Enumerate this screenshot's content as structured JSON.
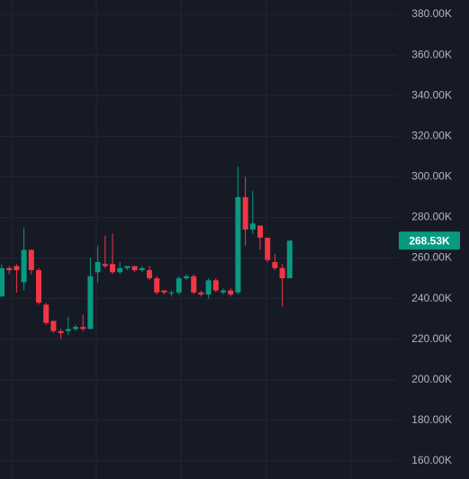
{
  "chart_data": {
    "type": "candlestick",
    "open": [
      241,
      255,
      256,
      248,
      264,
      254,
      237,
      229,
      224,
      224,
      225,
      226,
      225,
      253,
      257,
      257,
      253,
      255,
      256,
      254,
      254,
      250,
      244,
      243,
      243,
      250,
      251,
      243,
      242,
      249,
      243,
      244,
      243,
      290,
      274,
      276,
      270,
      258,
      255,
      250
    ],
    "high": [
      257,
      256,
      257,
      275,
      264,
      255,
      238,
      229,
      225,
      231,
      227,
      232,
      260,
      266,
      271,
      272,
      258,
      256,
      256,
      256,
      256,
      251,
      244,
      244,
      251,
      252,
      252,
      244,
      250,
      250,
      245,
      245,
      305,
      300,
      293,
      276,
      270,
      262,
      257,
      268.53
    ],
    "low": [
      241,
      252,
      243,
      244,
      252,
      237,
      227,
      223,
      220,
      222,
      224,
      224,
      225,
      248,
      255,
      252,
      252,
      254,
      253,
      253,
      249,
      242,
      242,
      241,
      242,
      249,
      242,
      241,
      240,
      243,
      242,
      241,
      242,
      266,
      272,
      264,
      258,
      254,
      236,
      250
    ],
    "close": [
      255,
      254,
      254,
      264,
      254,
      238,
      228,
      224,
      223,
      225,
      226,
      225,
      251,
      258,
      256,
      253,
      255,
      256,
      254,
      255,
      250,
      243,
      243,
      243,
      250,
      251,
      243,
      242,
      249,
      244,
      244,
      242,
      290,
      274,
      277,
      270,
      259,
      255,
      250,
      268.53
    ],
    "up_color": "#089981",
    "down_color": "#f23645",
    "ylim": [
      151.1,
      387.1
    ],
    "yticks": [
      {
        "value": 160,
        "label": "160.00K"
      },
      {
        "value": 180,
        "label": "180.00K"
      },
      {
        "value": 200,
        "label": "200.00K"
      },
      {
        "value": 220,
        "label": "220.00K"
      },
      {
        "value": 240,
        "label": "240.00K"
      },
      {
        "value": 260,
        "label": "260.00K"
      },
      {
        "value": 280,
        "label": "280.00K"
      },
      {
        "value": 300,
        "label": "300.00K"
      },
      {
        "value": 320,
        "label": "320.00K"
      },
      {
        "value": 340,
        "label": "340.00K"
      },
      {
        "value": 360,
        "label": "360.00K"
      },
      {
        "value": 380,
        "label": "380.00K"
      }
    ],
    "last_price": {
      "value": 268.53,
      "label": "268.53K"
    },
    "grid": true
  }
}
